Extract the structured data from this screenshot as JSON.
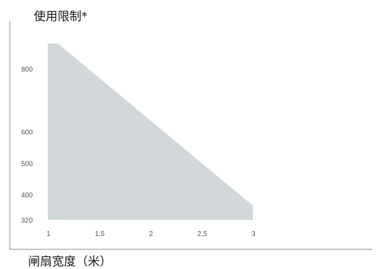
{
  "chart_data": {
    "type": "area",
    "title": "使用限制*",
    "xlabel": "闸扇宽度（米）",
    "ylabel": "",
    "x_ticks": [
      "1",
      "1,5",
      "2",
      "2,5",
      "3"
    ],
    "y_ticks": [
      "320",
      "400",
      "500",
      "600",
      "800"
    ],
    "xlim": [
      1,
      3
    ],
    "ylim": [
      320,
      880
    ],
    "x": [
      1,
      1.1,
      3,
      3
    ],
    "y": [
      880,
      880,
      365,
      320
    ],
    "grid": false,
    "colors": {
      "fill": "#d2d8d9",
      "axis": "#8a8a8a",
      "text": "#1a1a1a",
      "tick": "#555555"
    }
  }
}
